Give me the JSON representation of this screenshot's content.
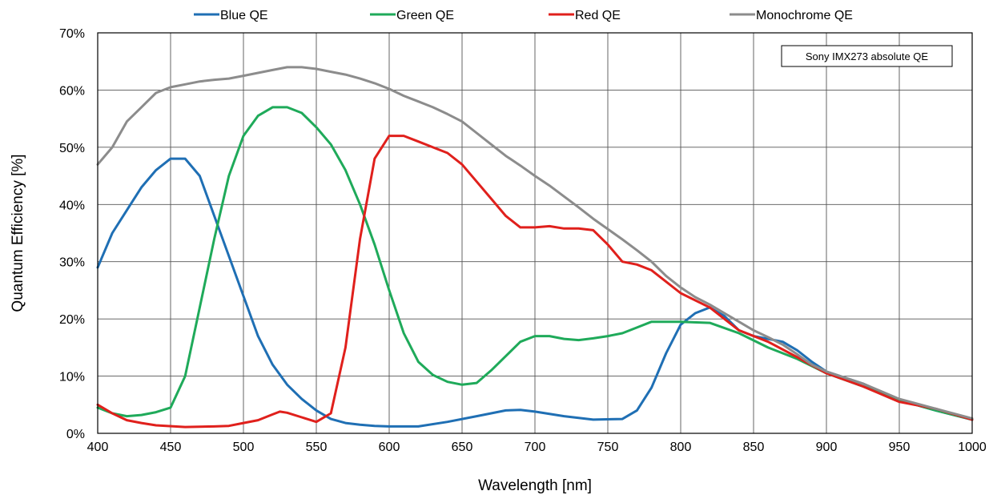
{
  "chart_data": {
    "type": "line",
    "xlabel": "Wavelength [nm]",
    "ylabel": "Quantum Efficiency [%]",
    "xlim": [
      400,
      1000
    ],
    "ylim": [
      0,
      70
    ],
    "x_ticks": [
      400,
      450,
      500,
      550,
      600,
      650,
      700,
      750,
      800,
      850,
      900,
      950,
      1000
    ],
    "y_ticks": [
      0,
      10,
      20,
      30,
      40,
      50,
      60,
      70
    ],
    "y_tick_labels": [
      "0%",
      "10%",
      "20%",
      "30%",
      "40%",
      "50%",
      "60%",
      "70%"
    ],
    "grid": true,
    "legend_position": "top",
    "annotation": "Sony IMX273 absolute QE",
    "series": [
      {
        "name": "Blue QE",
        "color": "#1F6FB4",
        "points": [
          [
            400,
            29
          ],
          [
            405,
            32
          ],
          [
            410,
            35
          ],
          [
            420,
            39
          ],
          [
            430,
            43
          ],
          [
            440,
            46
          ],
          [
            450,
            48
          ],
          [
            460,
            48
          ],
          [
            470,
            45
          ],
          [
            480,
            38
          ],
          [
            490,
            31
          ],
          [
            500,
            24
          ],
          [
            510,
            17
          ],
          [
            520,
            12
          ],
          [
            530,
            8.5
          ],
          [
            540,
            6
          ],
          [
            550,
            4
          ],
          [
            560,
            2.5
          ],
          [
            570,
            1.8
          ],
          [
            580,
            1.5
          ],
          [
            590,
            1.3
          ],
          [
            600,
            1.2
          ],
          [
            620,
            1.2
          ],
          [
            640,
            2
          ],
          [
            660,
            3
          ],
          [
            680,
            4
          ],
          [
            690,
            4.1
          ],
          [
            700,
            3.8
          ],
          [
            720,
            3
          ],
          [
            740,
            2.4
          ],
          [
            760,
            2.5
          ],
          [
            770,
            4
          ],
          [
            780,
            8
          ],
          [
            790,
            14
          ],
          [
            800,
            19
          ],
          [
            810,
            21
          ],
          [
            820,
            22
          ],
          [
            830,
            20.5
          ],
          [
            840,
            18
          ],
          [
            850,
            17
          ],
          [
            860,
            16.5
          ],
          [
            870,
            16
          ],
          [
            880,
            14.5
          ],
          [
            890,
            12.5
          ],
          [
            900,
            10.8
          ],
          [
            925,
            8.7
          ],
          [
            950,
            5.8
          ],
          [
            975,
            4
          ],
          [
            1000,
            2.4
          ]
        ]
      },
      {
        "name": "Green QE",
        "color": "#1FAA5A",
        "points": [
          [
            400,
            4.5
          ],
          [
            410,
            3.5
          ],
          [
            420,
            3
          ],
          [
            430,
            3.2
          ],
          [
            440,
            3.7
          ],
          [
            450,
            4.5
          ],
          [
            460,
            10
          ],
          [
            470,
            22
          ],
          [
            480,
            34
          ],
          [
            490,
            45
          ],
          [
            500,
            52
          ],
          [
            510,
            55.5
          ],
          [
            520,
            57
          ],
          [
            530,
            57
          ],
          [
            540,
            56
          ],
          [
            550,
            53.5
          ],
          [
            560,
            50.5
          ],
          [
            570,
            46
          ],
          [
            580,
            40
          ],
          [
            590,
            33
          ],
          [
            600,
            25
          ],
          [
            610,
            17.5
          ],
          [
            620,
            12.5
          ],
          [
            630,
            10.2
          ],
          [
            640,
            9
          ],
          [
            650,
            8.5
          ],
          [
            660,
            8.8
          ],
          [
            670,
            11
          ],
          [
            680,
            13.5
          ],
          [
            690,
            16
          ],
          [
            700,
            17
          ],
          [
            710,
            17
          ],
          [
            720,
            16.5
          ],
          [
            730,
            16.3
          ],
          [
            740,
            16.6
          ],
          [
            750,
            17
          ],
          [
            760,
            17.5
          ],
          [
            770,
            18.5
          ],
          [
            780,
            19.5
          ],
          [
            800,
            19.5
          ],
          [
            820,
            19.3
          ],
          [
            840,
            17.5
          ],
          [
            860,
            15
          ],
          [
            880,
            13
          ],
          [
            900,
            10.5
          ],
          [
            925,
            8.2
          ],
          [
            950,
            5.8
          ],
          [
            975,
            4
          ],
          [
            1000,
            2.4
          ]
        ]
      },
      {
        "name": "Red QE",
        "color": "#E0201C",
        "points": [
          [
            400,
            5
          ],
          [
            410,
            3.5
          ],
          [
            420,
            2.3
          ],
          [
            430,
            1.8
          ],
          [
            440,
            1.4
          ],
          [
            460,
            1.1
          ],
          [
            480,
            1.2
          ],
          [
            490,
            1.3
          ],
          [
            500,
            1.8
          ],
          [
            510,
            2.3
          ],
          [
            520,
            3.3
          ],
          [
            525,
            3.8
          ],
          [
            530,
            3.6
          ],
          [
            540,
            2.8
          ],
          [
            550,
            2
          ],
          [
            560,
            3.5
          ],
          [
            570,
            15
          ],
          [
            580,
            34
          ],
          [
            590,
            48
          ],
          [
            600,
            52
          ],
          [
            610,
            52
          ],
          [
            620,
            51
          ],
          [
            630,
            50
          ],
          [
            640,
            49
          ],
          [
            650,
            47
          ],
          [
            660,
            44
          ],
          [
            670,
            41
          ],
          [
            680,
            38
          ],
          [
            690,
            36
          ],
          [
            700,
            36
          ],
          [
            710,
            36.2
          ],
          [
            720,
            35.8
          ],
          [
            730,
            35.8
          ],
          [
            740,
            35.5
          ],
          [
            750,
            33
          ],
          [
            760,
            30
          ],
          [
            770,
            29.5
          ],
          [
            780,
            28.5
          ],
          [
            790,
            26.5
          ],
          [
            800,
            24.5
          ],
          [
            820,
            22
          ],
          [
            840,
            18
          ],
          [
            860,
            16
          ],
          [
            880,
            13.3
          ],
          [
            900,
            10.5
          ],
          [
            925,
            8.2
          ],
          [
            950,
            5.5
          ],
          [
            975,
            4.3
          ],
          [
            1000,
            2.4
          ]
        ]
      },
      {
        "name": "Monochrome QE",
        "color": "#8C8C8C",
        "points": [
          [
            400,
            47
          ],
          [
            410,
            50
          ],
          [
            420,
            54.5
          ],
          [
            430,
            57
          ],
          [
            440,
            59.5
          ],
          [
            450,
            60.5
          ],
          [
            460,
            61
          ],
          [
            470,
            61.5
          ],
          [
            480,
            61.8
          ],
          [
            490,
            62
          ],
          [
            500,
            62.5
          ],
          [
            510,
            63
          ],
          [
            520,
            63.5
          ],
          [
            530,
            64
          ],
          [
            540,
            64
          ],
          [
            550,
            63.7
          ],
          [
            560,
            63.2
          ],
          [
            570,
            62.7
          ],
          [
            580,
            62
          ],
          [
            590,
            61.2
          ],
          [
            600,
            60.2
          ],
          [
            610,
            59
          ],
          [
            620,
            58
          ],
          [
            630,
            57
          ],
          [
            640,
            55.8
          ],
          [
            650,
            54.5
          ],
          [
            660,
            52.5
          ],
          [
            670,
            50.5
          ],
          [
            680,
            48.5
          ],
          [
            690,
            46.8
          ],
          [
            700,
            45
          ],
          [
            710,
            43.3
          ],
          [
            720,
            41.4
          ],
          [
            730,
            39.5
          ],
          [
            740,
            37.5
          ],
          [
            750,
            35.7
          ],
          [
            760,
            33.9
          ],
          [
            770,
            32
          ],
          [
            780,
            30
          ],
          [
            790,
            27.5
          ],
          [
            800,
            25.5
          ],
          [
            810,
            23.8
          ],
          [
            820,
            22.5
          ],
          [
            830,
            21
          ],
          [
            840,
            19.5
          ],
          [
            850,
            18
          ],
          [
            860,
            16.8
          ],
          [
            870,
            15.5
          ],
          [
            880,
            13.8
          ],
          [
            890,
            12
          ],
          [
            900,
            10.8
          ],
          [
            925,
            8.7
          ],
          [
            950,
            6
          ],
          [
            975,
            4.3
          ],
          [
            1000,
            2.6
          ]
        ]
      }
    ]
  }
}
